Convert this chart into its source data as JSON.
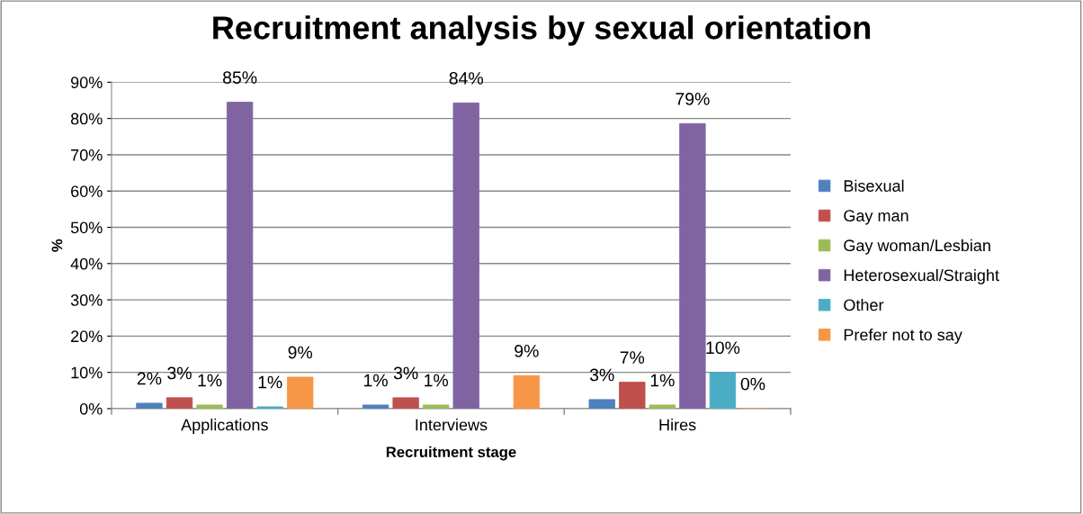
{
  "chart_data": {
    "type": "bar",
    "title": "Recruitment analysis by sexual orientation",
    "xlabel": "Recruitment stage",
    "ylabel": "%",
    "categories": [
      "Applications",
      "Interviews",
      "Hires"
    ],
    "series": [
      {
        "name": "Bisexual",
        "color": "#4f81bd",
        "values": [
          1.5,
          1.0,
          2.5
        ],
        "value_labels": [
          "2%",
          "1%",
          "3%"
        ]
      },
      {
        "name": "Gay man",
        "color": "#c0504d",
        "values": [
          3.0,
          3.0,
          7.3
        ],
        "value_labels": [
          "3%",
          "3%",
          "7%"
        ]
      },
      {
        "name": "Gay woman/Lesbian",
        "color": "#9bbb59",
        "values": [
          1.0,
          1.0,
          1.0
        ],
        "value_labels": [
          "1%",
          "1%",
          "1%"
        ]
      },
      {
        "name": "Heterosexual/Straight",
        "color": "#8064a2",
        "values": [
          84.5,
          84.3,
          78.6
        ],
        "value_labels": [
          "85%",
          "84%",
          "79%"
        ]
      },
      {
        "name": "Other",
        "color": "#4bacc6",
        "values": [
          0.5,
          null,
          10.0
        ],
        "value_labels": [
          "1%",
          null,
          "10%"
        ]
      },
      {
        "name": "Prefer not to say",
        "color": "#f79646",
        "values": [
          8.7,
          9.1,
          0
        ],
        "value_labels": [
          "9%",
          "9%",
          "0%"
        ]
      }
    ],
    "ylim": [
      0,
      90
    ],
    "yticks": [
      {
        "value": 0,
        "label": "0%"
      },
      {
        "value": 10,
        "label": "10%"
      },
      {
        "value": 20,
        "label": "20%"
      },
      {
        "value": 30,
        "label": "30%"
      },
      {
        "value": 40,
        "label": "40%"
      },
      {
        "value": 50,
        "label": "50%"
      },
      {
        "value": 60,
        "label": "60%"
      },
      {
        "value": 70,
        "label": "70%"
      },
      {
        "value": 80,
        "label": "80%"
      },
      {
        "value": 90,
        "label": "90%"
      }
    ],
    "grid": "y",
    "legend": "right"
  }
}
